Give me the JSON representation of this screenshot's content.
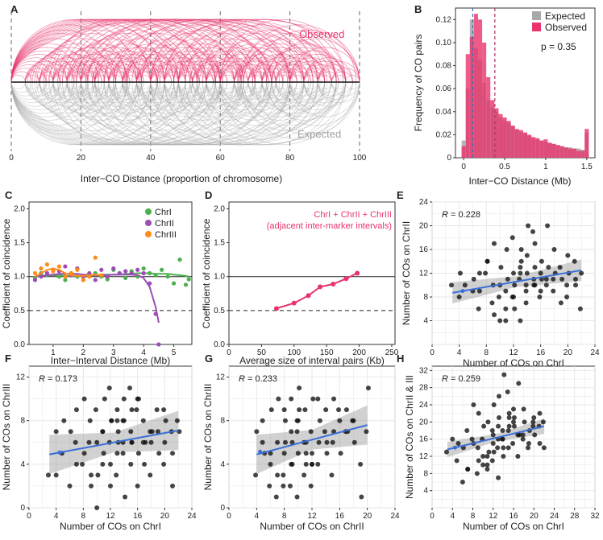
{
  "panel_labels": [
    "A",
    "B",
    "C",
    "D",
    "E",
    "F",
    "G",
    "H"
  ],
  "colors": {
    "observed": "#e8336b",
    "expected": "#a8a8a8",
    "chr1": "#4caf50",
    "chr2": "#9c4db5",
    "chr3": "#ff8c1a",
    "regression": "#3a6fd8",
    "mean_expected": "#3a6fb8",
    "mean_observed": "#b03060"
  },
  "chart_data": [
    {
      "panel": "A",
      "type": "arc",
      "xlabel": "Inter−CO Distance (proportion of chromosome)",
      "x_ticks": [
        "0",
        "20",
        "40",
        "60",
        "80",
        "100"
      ],
      "xlim": [
        0,
        100
      ],
      "series": [
        {
          "name": "Observed",
          "values": [
            4,
            6,
            8,
            10,
            12,
            14,
            16,
            18,
            20,
            22,
            25,
            28,
            30,
            33,
            36,
            40,
            44,
            48,
            52,
            56,
            60,
            65,
            70,
            76,
            82,
            90,
            96
          ]
        },
        {
          "name": "Expected",
          "values": [
            4,
            6,
            8,
            10,
            12,
            14,
            16,
            18,
            20,
            22,
            25,
            28,
            30,
            33,
            36,
            40,
            44,
            48,
            52,
            56,
            60,
            65,
            70,
            76,
            82,
            90,
            96
          ]
        }
      ]
    },
    {
      "panel": "B",
      "type": "bar",
      "xlabel": "Inter−CO Distance (Mb)",
      "ylabel": "Frequency of CO pairs",
      "annotation": "p = 0.35",
      "x_ticks": [
        "0",
        "0.5",
        "1",
        "1.5"
      ],
      "y_ticks": [
        "0",
        "0.02",
        "0.04",
        "0.06",
        "0.08",
        "0.10",
        "0.12"
      ],
      "xlim": [
        -0.1,
        1.6
      ],
      "ylim": [
        0,
        0.13
      ],
      "bin_width": 0.05,
      "mean_lines": {
        "Expected": 0.11,
        "Observed": 0.38
      },
      "x": [
        0.0,
        0.05,
        0.1,
        0.15,
        0.2,
        0.25,
        0.3,
        0.35,
        0.4,
        0.45,
        0.5,
        0.55,
        0.6,
        0.65,
        0.7,
        0.75,
        0.8,
        0.85,
        0.9,
        0.95,
        1.0,
        1.05,
        1.1,
        1.15,
        1.2,
        1.25,
        1.3,
        1.35,
        1.4,
        1.45,
        1.5
      ],
      "series": [
        {
          "name": "Expected",
          "values": [
            0.015,
            0.06,
            0.12,
            0.095,
            0.085,
            0.065,
            0.05,
            0.044,
            0.04,
            0.035,
            0.032,
            0.03,
            0.027,
            0.024,
            0.022,
            0.021,
            0.019,
            0.017,
            0.016,
            0.015,
            0.014,
            0.013,
            0.012,
            0.011,
            0.01,
            0.009,
            0.009,
            0.008,
            0.008,
            0.007,
            0.022
          ]
        },
        {
          "name": "Observed",
          "values": [
            0.01,
            0.09,
            0.105,
            0.125,
            0.12,
            0.1,
            0.07,
            0.05,
            0.043,
            0.038,
            0.035,
            0.032,
            0.028,
            0.025,
            0.024,
            0.022,
            0.02,
            0.018,
            0.017,
            0.015,
            0.016,
            0.013,
            0.012,
            0.011,
            0.01,
            0.009,
            0.008,
            0.008,
            0.006,
            0.006,
            0.025
          ]
        }
      ]
    },
    {
      "panel": "C",
      "type": "scatter",
      "xlabel": "Inter−Interval Distance (Mb)",
      "ylabel": "Coefficient of coincidence",
      "x_ticks": [
        "1",
        "2",
        "3",
        "4",
        "5"
      ],
      "y_ticks": [
        "0.0",
        "0.5",
        "1.0",
        "1.5",
        "2.0"
      ],
      "xlim": [
        0.2,
        5.6
      ],
      "ylim": [
        0,
        2.1
      ],
      "ref_lines": [
        1.0,
        0.5
      ],
      "series": [
        {
          "name": "ChrI",
          "x": [
            0.4,
            0.6,
            0.8,
            1.0,
            1.2,
            1.4,
            1.6,
            1.8,
            2.0,
            2.2,
            2.4,
            2.6,
            2.8,
            3.0,
            3.2,
            3.4,
            3.6,
            3.8,
            4.0,
            4.2,
            4.4,
            4.6,
            4.8,
            5.0,
            5.2,
            5.4,
            5.5
          ],
          "y": [
            0.98,
            1.05,
            1.02,
            1.1,
            1.0,
            0.95,
            1.05,
            1.0,
            0.95,
            1.02,
            1.05,
            1.0,
            0.96,
            1.1,
            1.05,
            0.98,
            1.08,
            1.0,
            1.12,
            1.05,
            1.02,
            1.1,
            1.0,
            0.9,
            1.25,
            0.88,
            0.96
          ],
          "trend": [
            1.0,
            1.01,
            1.02,
            1.02,
            1.02,
            1.01,
            1.01,
            1.01,
            1.01,
            1.02,
            1.02,
            1.03,
            1.03,
            1.03,
            1.03,
            1.04,
            1.04,
            1.05,
            1.05,
            1.05,
            1.04,
            1.04,
            1.04,
            1.03,
            1.02,
            1.01,
            1.0
          ]
        },
        {
          "name": "ChrII",
          "x": [
            0.4,
            0.6,
            0.8,
            1.0,
            1.2,
            1.4,
            1.6,
            1.8,
            2.0,
            2.2,
            2.4,
            2.6,
            2.8,
            3.0,
            3.2,
            3.4,
            3.6,
            3.8,
            4.0,
            4.2,
            4.4,
            4.5
          ],
          "y": [
            0.95,
            1.0,
            1.05,
            1.1,
            1.08,
            1.15,
            1.02,
            1.12,
            1.0,
            1.05,
            0.95,
            1.1,
            1.0,
            1.12,
            1.05,
            1.08,
            1.05,
            1.1,
            1.05,
            0.9,
            0.45,
            0.0
          ],
          "trend": [
            1.0,
            1.01,
            1.02,
            1.03,
            1.04,
            1.04,
            1.04,
            1.04,
            1.03,
            1.03,
            1.02,
            1.02,
            1.02,
            1.03,
            1.03,
            1.03,
            1.03,
            1.02,
            0.98,
            0.85,
            0.55,
            0.32
          ]
        },
        {
          "name": "ChrIII",
          "x": [
            0.4,
            0.6,
            0.8,
            1.0,
            1.2,
            1.4,
            1.6,
            1.8,
            2.0,
            2.2,
            2.4,
            2.6
          ],
          "y": [
            1.05,
            1.12,
            1.18,
            1.08,
            1.15,
            1.0,
            1.05,
            1.1,
            0.95,
            1.0,
            1.28,
            1.02
          ],
          "trend": [
            1.0,
            1.05,
            1.1,
            1.12,
            1.1,
            1.05,
            1.02,
            1.01,
            1.01,
            1.02,
            1.03,
            1.02
          ]
        }
      ]
    },
    {
      "panel": "D",
      "type": "line",
      "annotation": [
        "ChrI + ChrII + ChrIII",
        "(adjacent inter-marker intervals)"
      ],
      "xlabel": "Average size of interval pairs (Kb)",
      "ylabel": "Coefficient of coincidence",
      "x_ticks": [
        "0",
        "50",
        "100",
        "150",
        "200",
        "250"
      ],
      "y_ticks": [
        "0.0",
        "0.5",
        "1.0",
        "1.5",
        "2.0"
      ],
      "xlim": [
        0,
        255
      ],
      "ylim": [
        0,
        2.1
      ],
      "ref_lines": [
        1.0,
        0.5
      ],
      "x": [
        73,
        100,
        122,
        140,
        160,
        180,
        197
      ],
      "y": [
        0.53,
        0.61,
        0.72,
        0.85,
        0.89,
        0.97,
        1.05
      ]
    },
    {
      "panel": "E",
      "type": "scatter",
      "R": "0.228",
      "xlabel": "Number of COs on ChrI",
      "ylabel": "Number of COs on ChrII",
      "x_ticks": [
        "0",
        "4",
        "8",
        "12",
        "16",
        "20",
        "24"
      ],
      "y_ticks": [
        "4",
        "8",
        "12",
        "16",
        "20",
        "24"
      ],
      "xlim": [
        0,
        24
      ],
      "ylim": [
        0,
        24
      ],
      "fit": {
        "x": [
          3,
          22
        ],
        "y": [
          8.7,
          12.5
        ]
      },
      "x": [
        3,
        4,
        4,
        5,
        6,
        6,
        7,
        7,
        8,
        8,
        9,
        9,
        9,
        10,
        10,
        10,
        11,
        11,
        11,
        12,
        12,
        12,
        12,
        13,
        13,
        13,
        13,
        14,
        14,
        14,
        14,
        15,
        15,
        15,
        15,
        16,
        16,
        16,
        17,
        17,
        17,
        18,
        18,
        18,
        19,
        19,
        20,
        20,
        20,
        21,
        21,
        22,
        10,
        12,
        14,
        16,
        8,
        11,
        13,
        15,
        17,
        19,
        9,
        12,
        14,
        16,
        18,
        13,
        15,
        11,
        7,
        21,
        20,
        22
      ],
      "y": [
        10,
        8,
        12,
        10,
        9,
        11,
        6,
        9,
        14,
        12,
        10,
        17,
        7,
        10,
        13,
        8,
        16,
        11,
        6,
        12,
        10,
        18,
        8,
        14,
        11,
        4,
        16,
        9,
        12,
        20,
        7,
        11,
        13,
        19,
        10,
        14,
        8,
        12,
        13,
        10,
        20,
        12,
        9,
        16,
        11,
        13,
        15,
        12,
        8,
        14,
        11,
        6,
        4,
        6,
        10,
        9,
        14,
        4,
        12,
        17,
        11,
        7,
        5,
        8,
        15,
        11,
        11,
        13,
        10,
        9,
        12,
        10,
        10,
        12
      ]
    },
    {
      "panel": "F",
      "type": "scatter",
      "R": "0.173",
      "xlabel": "Number of COs on ChrI",
      "ylabel": "Number of COs on ChrIII",
      "x_ticks": [
        "0",
        "4",
        "8",
        "12",
        "16",
        "20",
        "24"
      ],
      "y_ticks": [
        "0",
        "4",
        "8",
        "12"
      ],
      "xlim": [
        0,
        24
      ],
      "ylim": [
        0,
        13
      ],
      "fit": {
        "x": [
          3,
          22
        ],
        "y": [
          4.9,
          7.1
        ]
      },
      "x": [
        3,
        4,
        5,
        5,
        6,
        6,
        7,
        7,
        8,
        8,
        9,
        9,
        9,
        10,
        10,
        10,
        11,
        11,
        11,
        12,
        12,
        12,
        12,
        13,
        13,
        13,
        13,
        14,
        14,
        14,
        14,
        15,
        15,
        15,
        15,
        16,
        16,
        16,
        17,
        17,
        17,
        18,
        18,
        18,
        19,
        19,
        20,
        20,
        20,
        21,
        21,
        22,
        10,
        12,
        14,
        16,
        8,
        11,
        13,
        15,
        17,
        19,
        9,
        12,
        14,
        16,
        18,
        13,
        15,
        11,
        7,
        21,
        20,
        4,
        22
      ],
      "y": [
        3,
        7,
        8,
        5,
        2,
        7,
        6,
        9,
        10,
        4,
        8,
        2,
        6,
        6,
        3,
        9,
        5,
        10,
        7,
        4,
        8,
        11,
        2,
        6,
        3,
        9,
        7,
        5,
        10,
        1,
        8,
        4,
        6,
        11,
        7,
        5,
        9,
        2,
        6,
        8,
        4,
        7,
        3,
        6,
        5,
        9,
        6,
        8,
        4,
        7,
        2,
        8,
        0,
        8,
        6,
        10,
        5,
        4,
        8,
        9,
        6,
        7,
        3,
        6,
        8,
        10,
        7,
        5,
        6,
        7,
        4,
        5,
        9,
        3,
        7
      ]
    },
    {
      "panel": "G",
      "type": "scatter",
      "R": "0.233",
      "xlabel": "Number of COs on ChrII",
      "ylabel": "Number of COs on ChrIII",
      "x_ticks": [
        "0",
        "4",
        "8",
        "12",
        "16",
        "20",
        "24"
      ],
      "y_ticks": [
        "0",
        "4",
        "8",
        "12"
      ],
      "xlim": [
        0,
        24
      ],
      "ylim": [
        0,
        13
      ],
      "fit": {
        "x": [
          4,
          20
        ],
        "y": [
          4.9,
          7.6
        ]
      },
      "x": [
        4,
        4,
        5,
        5,
        6,
        6,
        6,
        7,
        7,
        7,
        8,
        8,
        8,
        8,
        9,
        9,
        9,
        9,
        10,
        10,
        10,
        10,
        10,
        11,
        11,
        11,
        11,
        12,
        12,
        12,
        12,
        13,
        13,
        13,
        14,
        14,
        14,
        15,
        15,
        15,
        16,
        16,
        17,
        17,
        18,
        18,
        19,
        20,
        20,
        6,
        8,
        10,
        12,
        14,
        16,
        9,
        11,
        13,
        7,
        15,
        5,
        12,
        10,
        8,
        18,
        19,
        11,
        9,
        17
      ],
      "y": [
        3,
        7,
        5,
        8,
        4,
        9,
        2,
        6,
        10,
        1,
        5,
        8,
        3,
        9,
        6,
        2,
        10,
        4,
        7,
        5,
        11,
        1,
        8,
        6,
        3,
        9,
        4,
        7,
        5,
        10,
        2,
        6,
        8,
        4,
        9,
        5,
        7,
        6,
        10,
        3,
        8,
        5,
        7,
        9,
        6,
        8,
        4,
        11,
        7,
        5,
        6,
        8,
        4,
        6,
        9,
        7,
        5,
        10,
        3,
        7,
        6,
        4,
        9,
        2,
        8,
        1,
        6,
        4,
        7
      ]
    },
    {
      "panel": "H",
      "type": "scatter",
      "R": "0.259",
      "xlabel": "Number of COs on ChrI",
      "ylabel": "Number of COs on ChrII & III",
      "x_ticks": [
        "0",
        "4",
        "8",
        "12",
        "16",
        "20",
        "24",
        "28",
        "32"
      ],
      "y_ticks": [
        "4",
        "8",
        "12",
        "16",
        "20",
        "24",
        "28",
        "32"
      ],
      "xlim": [
        0,
        32
      ],
      "ylim": [
        0,
        33
      ],
      "fit": {
        "x": [
          3,
          22
        ],
        "y": [
          13.6,
          19.0
        ]
      },
      "x": [
        3,
        4,
        5,
        5,
        6,
        6,
        7,
        7,
        8,
        8,
        9,
        9,
        9,
        10,
        10,
        10,
        11,
        11,
        11,
        12,
        12,
        12,
        12,
        13,
        13,
        13,
        13,
        14,
        14,
        14,
        14,
        15,
        15,
        15,
        15,
        16,
        16,
        16,
        17,
        17,
        17,
        18,
        18,
        18,
        19,
        19,
        20,
        20,
        20,
        21,
        21,
        22,
        10,
        12,
        14,
        16,
        8,
        11,
        13,
        15,
        17,
        19,
        9,
        12,
        14,
        16,
        18,
        13,
        15,
        11,
        7,
        21,
        20,
        22
      ],
      "y": [
        13,
        16,
        15,
        11,
        6,
        14,
        18,
        9,
        24,
        16,
        14,
        22,
        8,
        12,
        19,
        16,
        20,
        13,
        9,
        17,
        24,
        11,
        15,
        21,
        14,
        7,
        26,
        18,
        12,
        31,
        16,
        14,
        21,
        27,
        18,
        19,
        15,
        23,
        17,
        12,
        29,
        20,
        16,
        23,
        18,
        14,
        21,
        17,
        19,
        19,
        22,
        20,
        10,
        13,
        16,
        20,
        15,
        12,
        19,
        22,
        17,
        15,
        11,
        18,
        14,
        21,
        17,
        16,
        19,
        10,
        9,
        15,
        20,
        14
      ]
    }
  ]
}
